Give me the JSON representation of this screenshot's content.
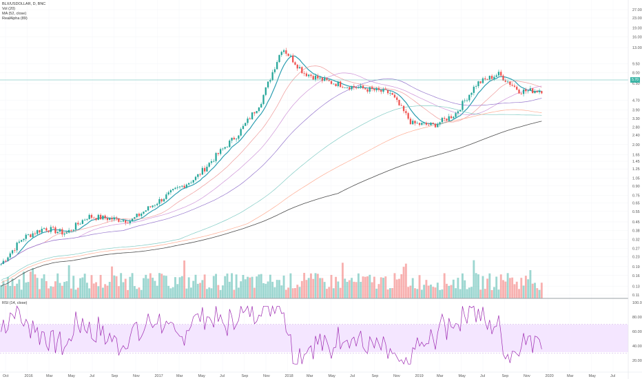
{
  "chart_data": [
    {
      "type": "candlestick",
      "title": "BLX/USDOLLAR, D, BNC",
      "indicators": [
        "Vol (20)",
        "MA (52, close)",
        "RealAlpha (89)"
      ],
      "x_ticks": [
        "Oct",
        "2016",
        "Mar",
        "May",
        "Jul",
        "Sep",
        "Nov",
        "2017",
        "Mar",
        "May",
        "Jul",
        "Sep",
        "Nov",
        "2018",
        "Mar",
        "May",
        "Jul",
        "Sep",
        "Nov",
        "2019",
        "Mar",
        "May",
        "Jul",
        "Sep",
        "Nov",
        "2020",
        "Mar",
        "May",
        "Jul"
      ],
      "y_scale": "log",
      "y_ticks": [
        "27.00",
        "23.00",
        "19.00",
        "16.00",
        "13.00",
        "9.50",
        "8.00",
        "6.50",
        "4.70",
        "3.90",
        "3.30",
        "2.80",
        "2.40",
        "2.00",
        "1.65",
        "1.45",
        "1.25",
        "1.05",
        "0.90",
        "0.75",
        "0.65",
        "0.55",
        "0.45",
        "0.38",
        "0.32",
        "0.27",
        "0.23",
        "0.19",
        "0.16",
        "0.13",
        "0.11"
      ],
      "last_price": "5.70",
      "series_price_approx": [
        {
          "date": "2015-10",
          "close": 0.2
        },
        {
          "date": "2015-12",
          "close": 0.33
        },
        {
          "date": "2016-02",
          "close": 0.4
        },
        {
          "date": "2016-04",
          "close": 0.36
        },
        {
          "date": "2016-06",
          "close": 0.5
        },
        {
          "date": "2016-08",
          "close": 0.48
        },
        {
          "date": "2016-10",
          "close": 0.46
        },
        {
          "date": "2016-12",
          "close": 0.62
        },
        {
          "date": "2017-02",
          "close": 0.82
        },
        {
          "date": "2017-04",
          "close": 1.05
        },
        {
          "date": "2017-06",
          "close": 1.65
        },
        {
          "date": "2017-08",
          "close": 2.5
        },
        {
          "date": "2017-10",
          "close": 4.5
        },
        {
          "date": "2017-12",
          "close": 13.0
        },
        {
          "date": "2018-02",
          "close": 8.0
        },
        {
          "date": "2018-04",
          "close": 6.8
        },
        {
          "date": "2018-06",
          "close": 6.2
        },
        {
          "date": "2018-08",
          "close": 5.8
        },
        {
          "date": "2018-10",
          "close": 5.4
        },
        {
          "date": "2018-12",
          "close": 3.0
        },
        {
          "date": "2019-02",
          "close": 2.9
        },
        {
          "date": "2019-04",
          "close": 3.6
        },
        {
          "date": "2019-06",
          "close": 6.5
        },
        {
          "date": "2019-08",
          "close": 7.8
        },
        {
          "date": "2019-10",
          "close": 5.6
        },
        {
          "date": "2019-11",
          "close": 5.7
        }
      ]
    },
    {
      "type": "line",
      "title": "RSI (14, close)",
      "y_ticks": [
        "100.00",
        "80.00",
        "60.00",
        "40.00",
        "20.00"
      ],
      "band": [
        30,
        70
      ]
    }
  ],
  "colors": {
    "up": "#26a69a",
    "down": "#ef5350",
    "ma": "#3a9eb5",
    "rsi": "#9c27b0",
    "band": "#f3e0ff",
    "grid": "#f0f3fa"
  }
}
